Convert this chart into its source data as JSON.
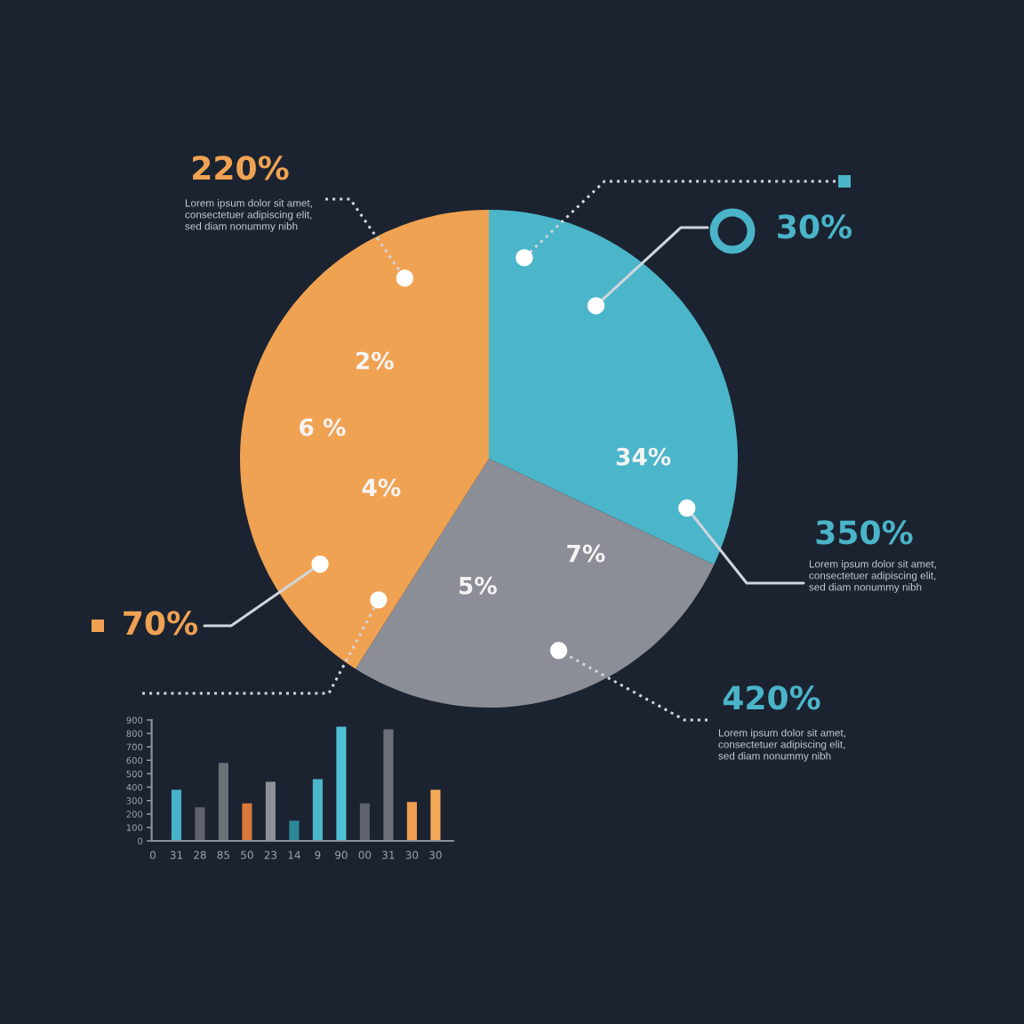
{
  "chart_data": [
    {
      "type": "pie",
      "categories": [
        null,
        null,
        null
      ],
      "values": [
        32,
        27,
        41
      ],
      "colors": [
        "#4bb5ca",
        "#8b8e96",
        "#f0a253"
      ],
      "annotations": [
        "220%",
        "Lorem ipsum dolor sit amet,\nconsectetuer adipiscing elit,\nsed diam nonummy nibh",
        "30%",
        "350%",
        "Lorem ipsum dolor sit amet,\nconsectetuer adipiscing elit,\nsed diam nonummy nibh",
        "420%",
        "Lorem ipsum dolor sit amet,\nconsectetuer adipiscing elit,\nsed diam nonummy nibh",
        "70%",
        "2%",
        "6 %",
        "4%",
        "34%",
        "7%",
        "5%"
      ]
    },
    {
      "type": "bar",
      "categories": [
        "0",
        "31",
        "28",
        "85",
        "50",
        "23",
        "14",
        "9",
        "90",
        "00",
        "31",
        "30",
        "30"
      ],
      "values": [
        null,
        380,
        250,
        580,
        280,
        440,
        150,
        460,
        850,
        280,
        830,
        290,
        380
      ],
      "colors": [
        null,
        "#48b3c8",
        "#5d626c",
        "#6c7079",
        "#d97a3c",
        "#8e9198",
        "#2b8797",
        "#4ab6ca",
        "#4fc0d4",
        "#5d626c",
        "#6c7079",
        "#f0a050",
        "#f4aa58"
      ],
      "ylim": [
        0,
        900
      ],
      "yticks": [
        0,
        100,
        200,
        300,
        400,
        500,
        600,
        700,
        800,
        900
      ]
    }
  ]
}
